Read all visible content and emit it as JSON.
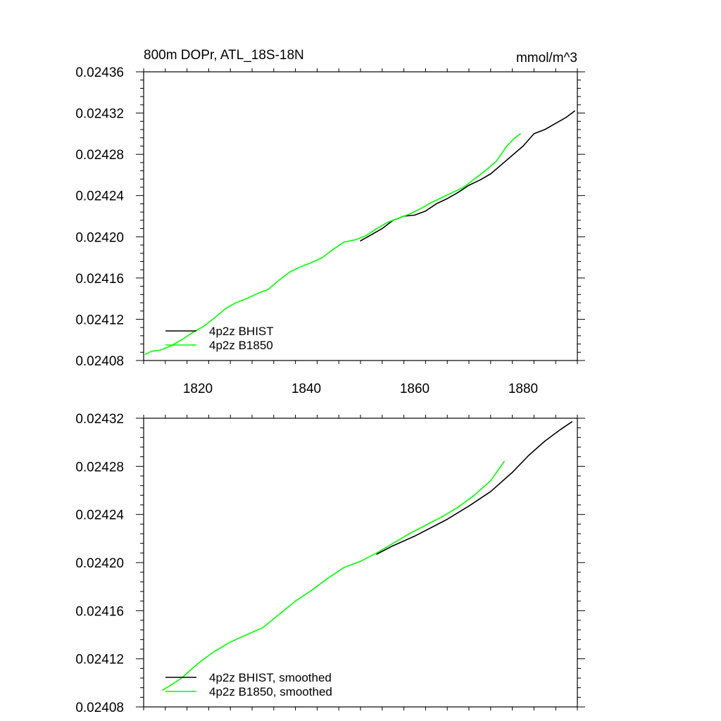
{
  "chart_data": [
    {
      "type": "line",
      "title": "800m DOPr, ATL_18S-18N",
      "units": "mmol/m^3",
      "xlim": [
        1810,
        1890
      ],
      "ylim": [
        0.02408,
        0.02436
      ],
      "xticks": [
        1820,
        1840,
        1860,
        1880
      ],
      "xtick_labels": [
        "1820",
        "1840",
        "1860",
        "1880"
      ],
      "yticks": [
        0.02408,
        0.02412,
        0.02416,
        0.0242,
        0.02424,
        0.02428,
        0.02432,
        0.02436
      ],
      "ytick_labels": [
        "0.02408",
        "0.02412",
        "0.02416",
        "0.02420",
        "0.02424",
        "0.02428",
        "0.02432",
        "0.02436"
      ],
      "legend_position": "bottom-left",
      "series": [
        {
          "name": "4p2z BHIST",
          "color": "#000000",
          "x": [
            1850,
            1852,
            1854,
            1856,
            1858,
            1860,
            1862,
            1864,
            1866,
            1868,
            1870,
            1872,
            1874,
            1876,
            1878,
            1880,
            1882,
            1884,
            1886,
            1888,
            1889.5
          ],
          "y": [
            0.024196,
            0.024202,
            0.024208,
            0.024216,
            0.02422,
            0.024221,
            0.024225,
            0.024232,
            0.024237,
            0.024243,
            0.02425,
            0.024255,
            0.024261,
            0.02427,
            0.024279,
            0.024288,
            0.0243,
            0.024304,
            0.02431,
            0.024316,
            0.024322
          ]
        },
        {
          "name": "4p2z B1850",
          "color": "#00ff00",
          "x": [
            1810.3,
            1811.5,
            1813,
            1815,
            1817,
            1819,
            1821,
            1823,
            1825,
            1827,
            1829,
            1831,
            1833,
            1835,
            1837,
            1839,
            1841,
            1843,
            1845,
            1847,
            1849,
            1851,
            1853,
            1855,
            1857,
            1859,
            1861,
            1863,
            1865,
            1867,
            1869,
            1871,
            1873,
            1875,
            1877,
            1878.5,
            1879.5
          ],
          "y": [
            0.024086,
            0.024089,
            0.02409,
            0.024094,
            0.0241,
            0.024107,
            0.024113,
            0.024121,
            0.02413,
            0.024136,
            0.02414,
            0.024145,
            0.024149,
            0.024158,
            0.024166,
            0.024171,
            0.024175,
            0.02418,
            0.024188,
            0.024195,
            0.024197,
            0.024201,
            0.024208,
            0.024214,
            0.024218,
            0.024222,
            0.024227,
            0.024233,
            0.024238,
            0.024243,
            0.024248,
            0.024256,
            0.024264,
            0.024273,
            0.024288,
            0.024296,
            0.0243
          ]
        }
      ]
    },
    {
      "type": "line",
      "xlim": [
        1810,
        1890
      ],
      "ylim": [
        0.02408,
        0.02432
      ],
      "xticks": [
        1820,
        1840,
        1860,
        1880
      ],
      "yticks": [
        0.02408,
        0.02412,
        0.02416,
        0.0242,
        0.02424,
        0.02428,
        0.02432
      ],
      "ytick_labels": [
        "0.02408",
        "0.02412",
        "0.02416",
        "0.02420",
        "0.02424",
        "0.02428",
        "0.02432"
      ],
      "legend_position": "bottom-left",
      "series": [
        {
          "name": "4p2z BHIST, smoothed",
          "color": "#000000",
          "x": [
            1853,
            1856,
            1860,
            1863,
            1866,
            1870,
            1874,
            1878,
            1881,
            1884,
            1887,
            1889
          ],
          "y": [
            0.024207,
            0.024214,
            0.024222,
            0.024229,
            0.024236,
            0.024247,
            0.024259,
            0.024275,
            0.024289,
            0.024301,
            0.024311,
            0.024317
          ]
        },
        {
          "name": "4p2z B1850, smoothed",
          "color": "#00ff00",
          "x": [
            1813.5,
            1815,
            1817,
            1820,
            1823,
            1826,
            1829,
            1832,
            1835,
            1838,
            1841,
            1844,
            1847,
            1850,
            1853,
            1856,
            1859,
            1862,
            1865,
            1868,
            1871,
            1874,
            1876.5
          ],
          "y": [
            0.024094,
            0.024098,
            0.024104,
            0.024116,
            0.024126,
            0.024134,
            0.02414,
            0.024146,
            0.024157,
            0.024168,
            0.024177,
            0.024187,
            0.024196,
            0.024201,
            0.024208,
            0.024216,
            0.024224,
            0.024231,
            0.024238,
            0.024246,
            0.024256,
            0.024268,
            0.024284
          ]
        }
      ]
    }
  ]
}
